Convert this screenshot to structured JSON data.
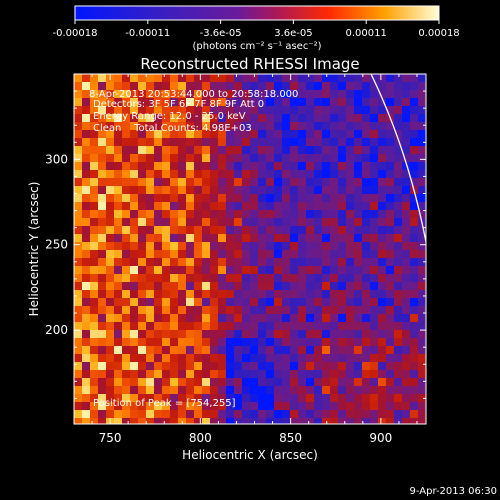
{
  "chart_data": {
    "type": "heatmap",
    "title": "Reconstructed RHESSI Image",
    "xlabel": "Heliocentric X (arcsec)",
    "ylabel": "Heliocentric Y (arcsec)",
    "xlim": [
      730,
      925
    ],
    "ylim": [
      145,
      350
    ],
    "x_ticks": [
      {
        "value": 750,
        "label": "750"
      },
      {
        "value": 800,
        "label": "800"
      },
      {
        "value": 850,
        "label": "850"
      },
      {
        "value": 900,
        "label": "900"
      }
    ],
    "y_ticks": [
      {
        "value": 200,
        "label": "200"
      },
      {
        "value": 250,
        "label": "250"
      },
      {
        "value": 300,
        "label": "300"
      }
    ],
    "colorbar": {
      "range": [
        -0.00018,
        0.00018
      ],
      "tick_labels": [
        "-0.00018",
        "-0.00011",
        "-3.6e-05",
        "3.6e-05",
        "0.00011",
        "0.00018"
      ],
      "unit_label": "(photons cm⁻² s⁻¹ asec⁻²)"
    },
    "annotations": [
      "8-Apr-2013 20:53:44.000 to 20:58:18.000",
      "Detectors: 3F 5F 6F 7F 8F 9F Att 0",
      "Energy Range: 12.0 - 25.0 keV",
      "Clean    Total Counts: 4.98E+03"
    ],
    "peak": {
      "x": 754,
      "y": 255,
      "label": "Position of Peak = [754,255]"
    },
    "footer_timestamp": "9-Apr-2013 06:30"
  }
}
